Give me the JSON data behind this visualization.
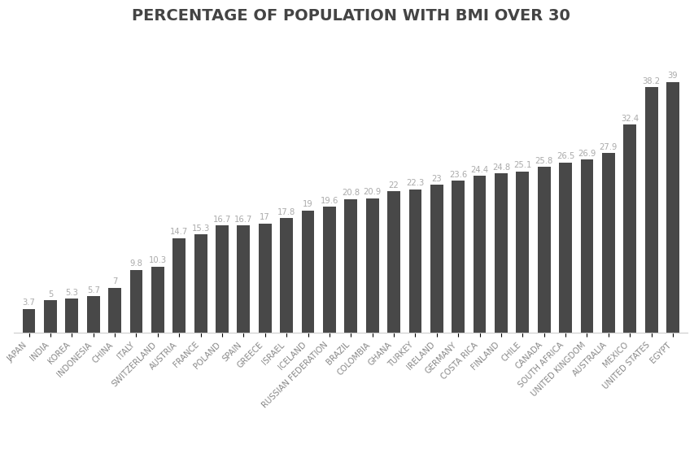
{
  "title": "PERCENTAGE OF POPULATION WITH BMI OVER 30",
  "categories": [
    "JAPAN",
    "INDIA",
    "KOREA",
    "INDONESIA",
    "CHINA",
    "ITALY",
    "SWITZERLAND",
    "AUSTRIA",
    "FRANCE",
    "POLAND",
    "SPAIN",
    "GREECE",
    "ISRAEL",
    "ICELAND",
    "RUSSIAN FEDERATION",
    "BRAZIL",
    "COLOMBIA",
    "GHANA",
    "TURKEY",
    "IRELAND",
    "GERMANY",
    "COSTA RICA",
    "FINLAND",
    "CHILE",
    "CANADA",
    "SOUTH AFRICA",
    "UNITED KINGDOM",
    "AUSTRALIA",
    "MEXICO",
    "UNITED STATES",
    "EGYPT"
  ],
  "values": [
    3.7,
    5,
    5.3,
    5.7,
    7,
    9.8,
    10.3,
    14.7,
    15.3,
    16.7,
    16.7,
    17,
    17.8,
    19,
    19.6,
    20.8,
    20.9,
    22,
    22.3,
    23,
    23.6,
    24.4,
    24.8,
    25.1,
    25.8,
    26.5,
    26.9,
    27.9,
    32.4,
    38.2,
    39
  ],
  "bar_color": "#484848",
  "label_color": "#aaaaaa",
  "title_color": "#444444",
  "xticklabel_color": "#888888",
  "background_color": "#ffffff",
  "title_fontsize": 14,
  "label_fontsize": 7.2,
  "value_fontsize": 7.2,
  "ylim": [
    0,
    46
  ],
  "bar_width": 0.6,
  "xticklabel_rotation": 45,
  "xticklabel_ha": "right"
}
